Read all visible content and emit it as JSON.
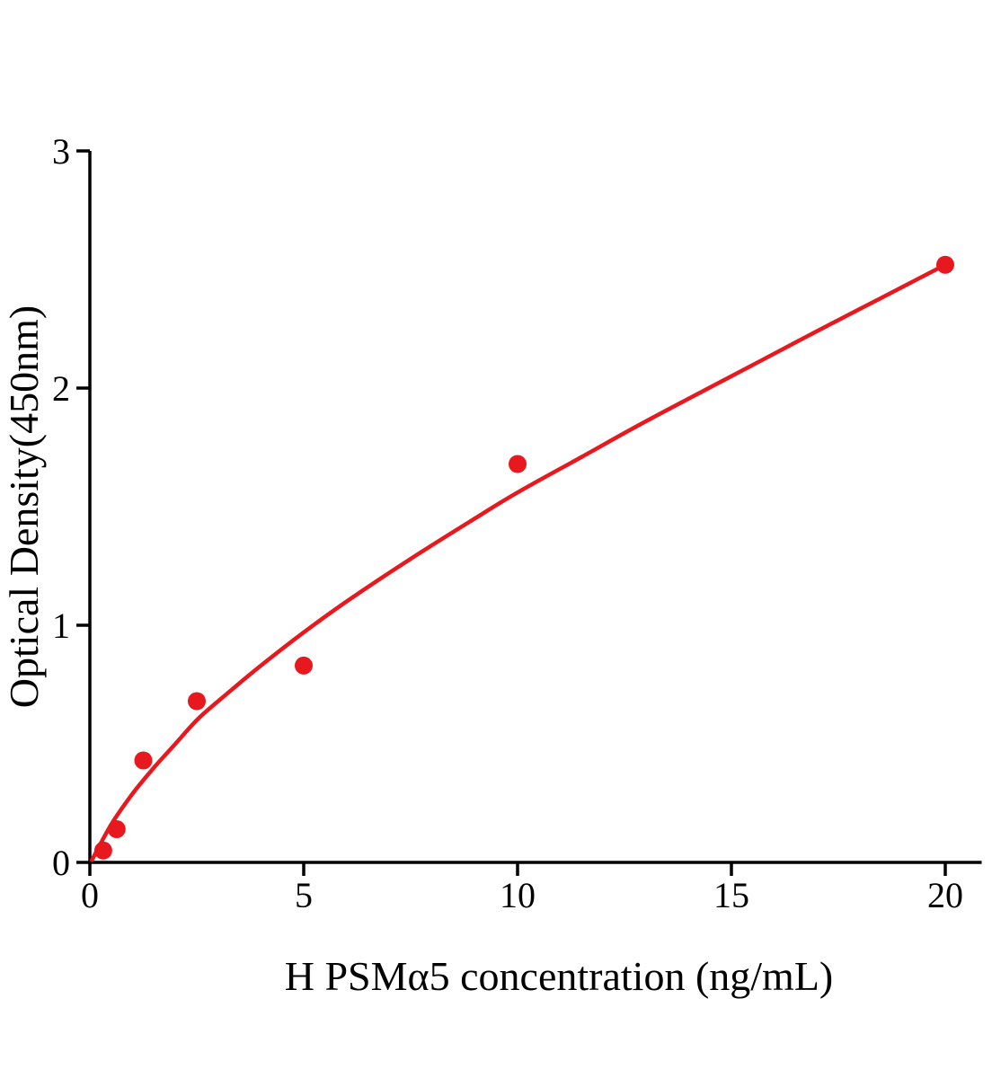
{
  "chart_data": {
    "type": "scatter",
    "title": "",
    "xlabel": "H PSMα5 concentration (ng/mL)",
    "ylabel": "Optical Density(450nm)",
    "xlim": [
      0,
      20.85
    ],
    "ylim": [
      0,
      3
    ],
    "xticks": [
      "0",
      "5",
      "10",
      "15",
      "20"
    ],
    "yticks": [
      "0",
      "1",
      "2",
      "3"
    ],
    "grid": false,
    "legend_position": "none",
    "accent_color": "#e8191e",
    "axis_color": "#000000",
    "series": [
      {
        "name": "fit-curve",
        "type": "line",
        "color": "#e8191e",
        "points": [
          {
            "x": 0.05,
            "y": 0.01
          },
          {
            "x": 0.5,
            "y": 0.16
          },
          {
            "x": 1.0,
            "y": 0.29
          },
          {
            "x": 1.5,
            "y": 0.4
          },
          {
            "x": 2.0,
            "y": 0.5
          },
          {
            "x": 2.5,
            "y": 0.6
          },
          {
            "x": 3.0,
            "y": 0.68
          },
          {
            "x": 4.0,
            "y": 0.83
          },
          {
            "x": 5.0,
            "y": 0.97
          },
          {
            "x": 6.0,
            "y": 1.1
          },
          {
            "x": 7.5,
            "y": 1.28
          },
          {
            "x": 9.0,
            "y": 1.45
          },
          {
            "x": 10.0,
            "y": 1.56
          },
          {
            "x": 11.5,
            "y": 1.71
          },
          {
            "x": 13.0,
            "y": 1.86
          },
          {
            "x": 15.0,
            "y": 2.05
          },
          {
            "x": 17.0,
            "y": 2.24
          },
          {
            "x": 18.5,
            "y": 2.38
          },
          {
            "x": 20.0,
            "y": 2.52
          }
        ]
      },
      {
        "name": "standards",
        "type": "scatter",
        "color": "#e8191e",
        "points": [
          {
            "x": 0.3125,
            "y": 0.05
          },
          {
            "x": 0.625,
            "y": 0.14
          },
          {
            "x": 1.25,
            "y": 0.43
          },
          {
            "x": 2.5,
            "y": 0.68
          },
          {
            "x": 5,
            "y": 0.83
          },
          {
            "x": 10,
            "y": 1.68
          },
          {
            "x": 20,
            "y": 2.52
          }
        ]
      }
    ]
  }
}
